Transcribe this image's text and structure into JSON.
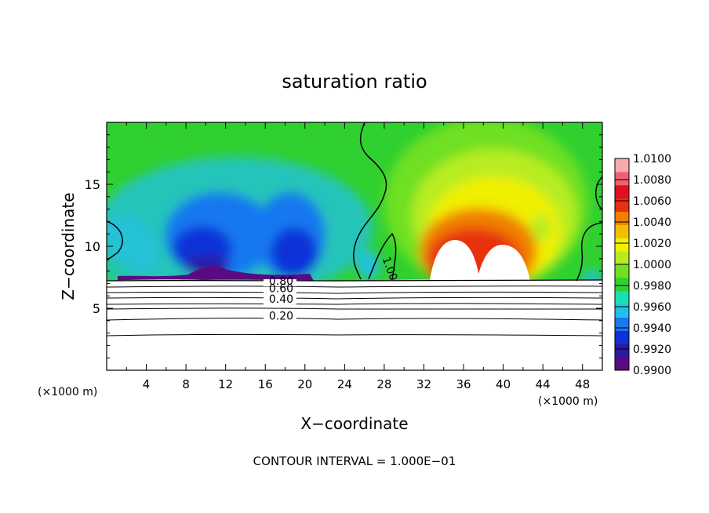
{
  "chart_data": {
    "type": "heatmap",
    "title": "saturation ratio",
    "xlabel": "X−coordinate",
    "ylabel": "Z−coordinate",
    "x_unit": "(×1000 m)",
    "y_unit": "(×1000 m)",
    "xlim": [
      0,
      50
    ],
    "ylim": [
      0,
      20
    ],
    "x_ticks": [
      4,
      8,
      12,
      16,
      20,
      24,
      28,
      32,
      36,
      40,
      44,
      48
    ],
    "y_ticks": [
      5,
      10,
      15
    ],
    "footer": "CONTOUR INTERVAL = 1.000E−01",
    "colorbar": {
      "labels": [
        "1.0100",
        "1.0080",
        "1.0060",
        "1.0040",
        "1.0020",
        "1.0000",
        "0.9980",
        "0.9960",
        "0.9940",
        "0.9920",
        "0.9900"
      ],
      "colors": [
        "#5a0a82",
        "#2a1aa0",
        "#1030d8",
        "#1878f0",
        "#22c0e8",
        "#18e0b0",
        "#30d030",
        "#70e020",
        "#b8ec20",
        "#f0f000",
        "#f0c000",
        "#f08000",
        "#e83010",
        "#e01020",
        "#f06070",
        "#f8a8b0"
      ]
    },
    "contour_labels": [
      {
        "text": "0.80",
        "x": 17.6,
        "y": 7.2
      },
      {
        "text": "0.60",
        "x": 17.6,
        "y": 6.6
      },
      {
        "text": "0.40",
        "x": 17.6,
        "y": 5.75
      },
      {
        "text": "0.20",
        "x": 17.6,
        "y": 4.4
      },
      {
        "text": "1.00",
        "x": 28.6,
        "y": 8.2
      }
    ],
    "terrain_contours": [
      {
        "value": 0.2,
        "y": 4.25
      },
      {
        "value": 0.4,
        "y": 5.65
      },
      {
        "value": 0.6,
        "y": 6.5
      },
      {
        "value": 0.8,
        "y": 7.0
      }
    ],
    "surface_height": 7.2
  }
}
